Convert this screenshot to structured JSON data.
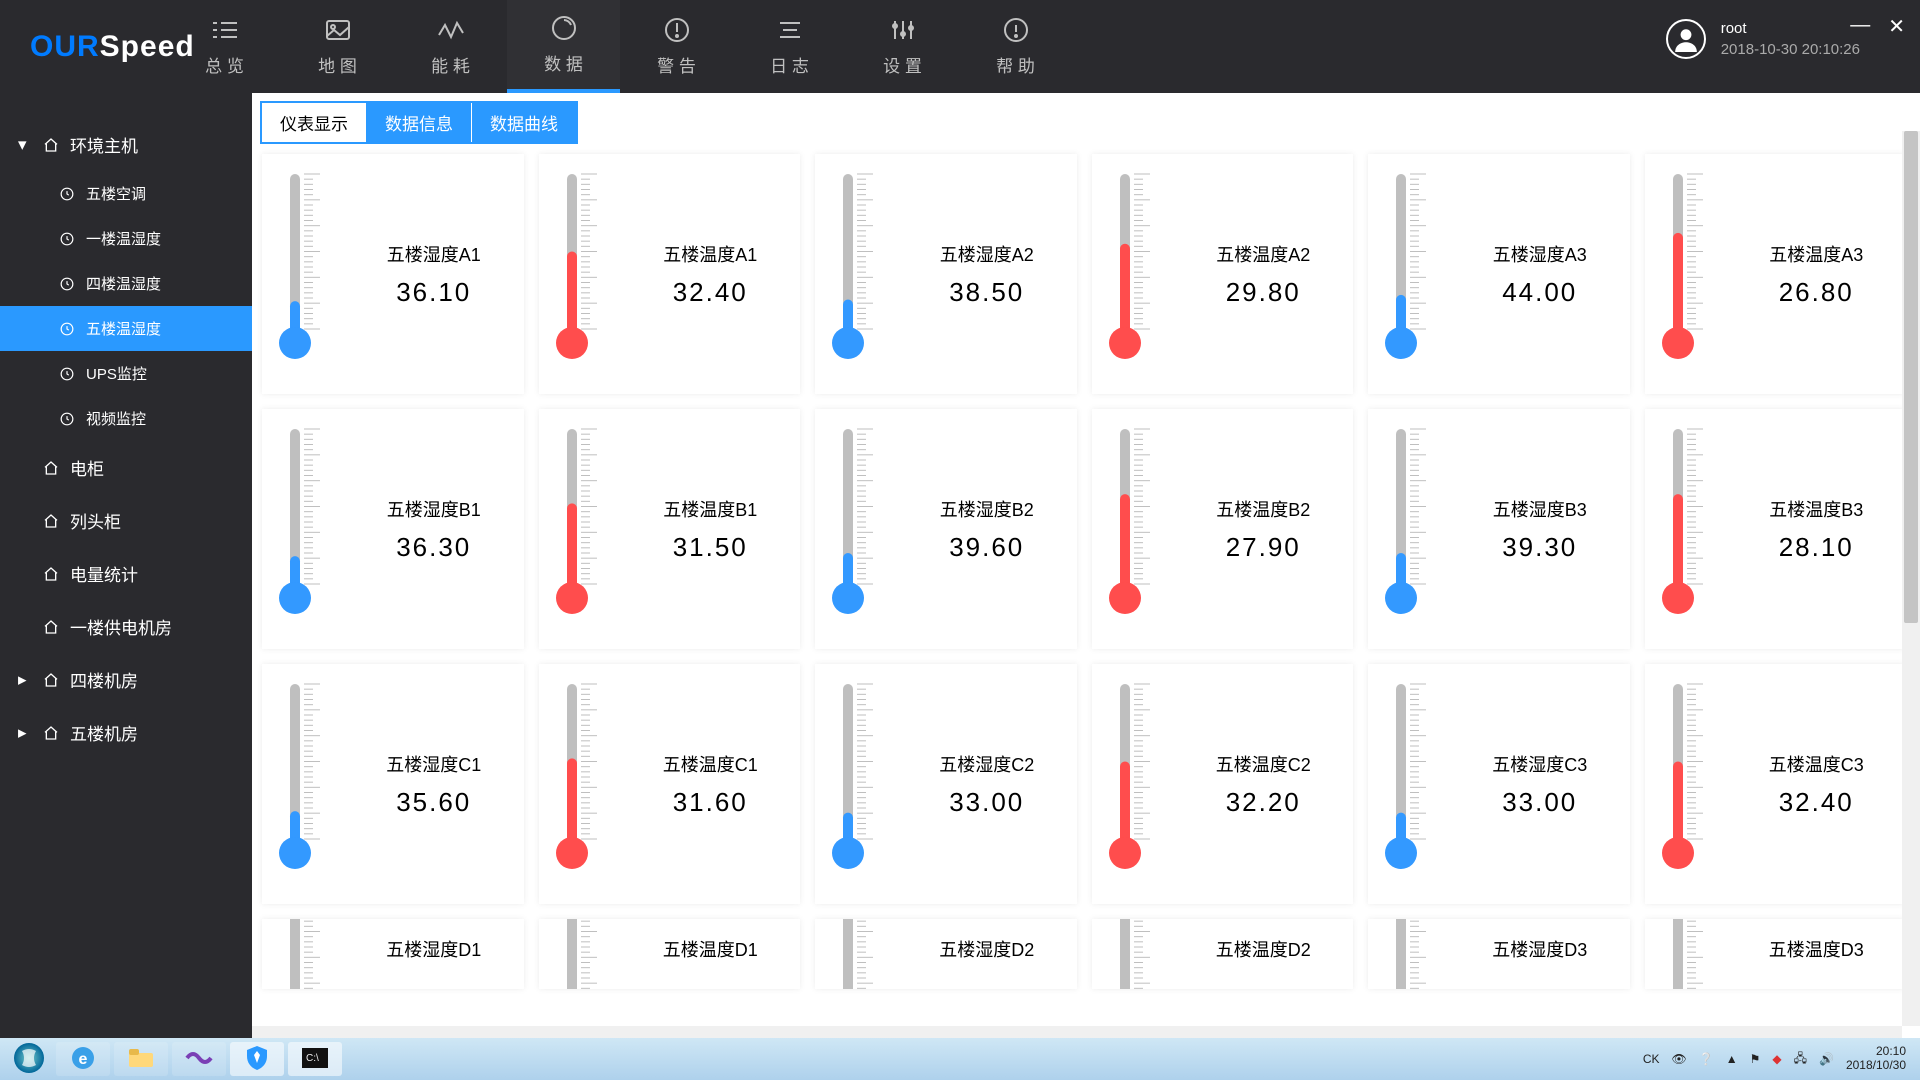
{
  "brand": {
    "part1": "OUR",
    "part2": "Speed"
  },
  "colors": {
    "accent": "#2a99ff",
    "header_bg": "#2a2a2e",
    "humidity": "#3399ff",
    "temperature": "#ff4d4d",
    "thermo_tube": "#bfbfbf",
    "tick": "#bfbfbf",
    "card_bg": "#ffffff"
  },
  "nav_items": [
    {
      "label": "总 览",
      "icon": "overview"
    },
    {
      "label": "地 图",
      "icon": "map"
    },
    {
      "label": "能 耗",
      "icon": "energy"
    },
    {
      "label": "数 据",
      "icon": "data",
      "active": true
    },
    {
      "label": "警 告",
      "icon": "alert"
    },
    {
      "label": "日 志",
      "icon": "logs"
    },
    {
      "label": "设 置",
      "icon": "settings"
    },
    {
      "label": "帮 助",
      "icon": "help"
    }
  ],
  "user": {
    "name": "root",
    "datetime": "2018-10-30 20:10:26"
  },
  "sidebar": {
    "group1": {
      "label": "环境主机",
      "expanded": true,
      "items": [
        {
          "label": "五楼空调"
        },
        {
          "label": "一楼温湿度"
        },
        {
          "label": "四楼温湿度"
        },
        {
          "label": "五楼温湿度",
          "active": true
        },
        {
          "label": "UPS监控"
        },
        {
          "label": "视频监控"
        }
      ]
    },
    "others": [
      {
        "label": "电柜",
        "icon": "home",
        "caret": false
      },
      {
        "label": "列头柜",
        "icon": "home",
        "caret": false
      },
      {
        "label": "电量统计",
        "icon": "home",
        "caret": false
      },
      {
        "label": "一楼供电机房",
        "icon": "home",
        "caret": false
      },
      {
        "label": "四楼机房",
        "icon": "home",
        "caret": true
      },
      {
        "label": "五楼机房",
        "icon": "home",
        "caret": true
      }
    ]
  },
  "tabs": [
    {
      "label": "仪表显示",
      "active": true
    },
    {
      "label": "数据信息"
    },
    {
      "label": "数据曲线"
    }
  ],
  "thermo_style": {
    "tube_width": 10,
    "bulb_radius": 16,
    "tick_count": 20,
    "max_value": 100,
    "min_value": 0
  },
  "sensors": [
    {
      "label": "五楼湿度A1",
      "value": "36.10",
      "kind": "humidity",
      "fill_pct": 18
    },
    {
      "label": "五楼温度A1",
      "value": "32.40",
      "kind": "temperature",
      "fill_pct": 50
    },
    {
      "label": "五楼湿度A2",
      "value": "38.50",
      "kind": "humidity",
      "fill_pct": 19
    },
    {
      "label": "五楼温度A2",
      "value": "29.80",
      "kind": "temperature",
      "fill_pct": 55
    },
    {
      "label": "五楼湿度A3",
      "value": "44.00",
      "kind": "humidity",
      "fill_pct": 22
    },
    {
      "label": "五楼温度A3",
      "value": "26.80",
      "kind": "temperature",
      "fill_pct": 62
    },
    {
      "label": "五楼湿度B1",
      "value": "36.30",
      "kind": "humidity",
      "fill_pct": 18
    },
    {
      "label": "五楼温度B1",
      "value": "31.50",
      "kind": "temperature",
      "fill_pct": 52
    },
    {
      "label": "五楼湿度B2",
      "value": "39.60",
      "kind": "humidity",
      "fill_pct": 20
    },
    {
      "label": "五楼温度B2",
      "value": "27.90",
      "kind": "temperature",
      "fill_pct": 58
    },
    {
      "label": "五楼湿度B3",
      "value": "39.30",
      "kind": "humidity",
      "fill_pct": 20
    },
    {
      "label": "五楼温度B3",
      "value": "28.10",
      "kind": "temperature",
      "fill_pct": 58
    },
    {
      "label": "五楼湿度C1",
      "value": "35.60",
      "kind": "humidity",
      "fill_pct": 18
    },
    {
      "label": "五楼温度C1",
      "value": "31.60",
      "kind": "temperature",
      "fill_pct": 52
    },
    {
      "label": "五楼湿度C2",
      "value": "33.00",
      "kind": "humidity",
      "fill_pct": 17
    },
    {
      "label": "五楼温度C2",
      "value": "32.20",
      "kind": "temperature",
      "fill_pct": 50
    },
    {
      "label": "五楼湿度C3",
      "value": "33.00",
      "kind": "humidity",
      "fill_pct": 17
    },
    {
      "label": "五楼温度C3",
      "value": "32.40",
      "kind": "temperature",
      "fill_pct": 50
    },
    {
      "label": "五楼湿度D1",
      "value": "",
      "kind": "humidity",
      "fill_pct": 0,
      "partial": true
    },
    {
      "label": "五楼温度D1",
      "value": "",
      "kind": "temperature",
      "fill_pct": 0,
      "partial": true
    },
    {
      "label": "五楼湿度D2",
      "value": "",
      "kind": "humidity",
      "fill_pct": 0,
      "partial": true
    },
    {
      "label": "五楼温度D2",
      "value": "",
      "kind": "temperature",
      "fill_pct": 0,
      "partial": true
    },
    {
      "label": "五楼湿度D3",
      "value": "",
      "kind": "humidity",
      "fill_pct": 0,
      "partial": true
    },
    {
      "label": "五楼温度D3",
      "value": "",
      "kind": "temperature",
      "fill_pct": 0,
      "partial": true
    }
  ],
  "taskbar": {
    "apps": [
      "start",
      "ie",
      "explorer",
      "vs",
      "shield",
      "terminal"
    ],
    "ime": "CK",
    "clock_time": "20:10",
    "clock_date": "2018/10/30"
  }
}
